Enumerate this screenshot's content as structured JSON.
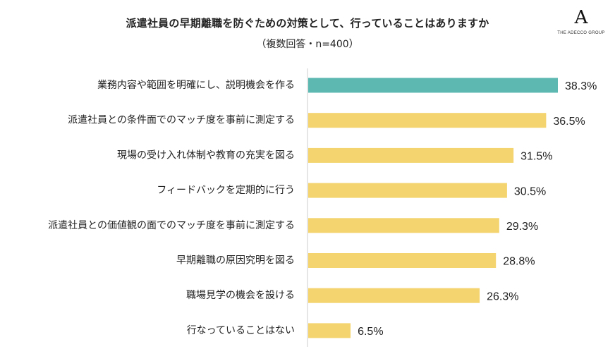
{
  "title": "派遣社員の早期離職を防ぐための対策として、行っていることはありますか",
  "subtitle": "（複数回答・n=400）",
  "logo": {
    "mark": "A",
    "text": "THE ADECCO GROUP"
  },
  "colors": {
    "highlight": "#5db8b2",
    "bar": "#f3d46e",
    "axis": "#cccccc",
    "text": "#222222"
  },
  "chart_data": {
    "type": "bar",
    "orientation": "horizontal",
    "categories": [
      "業務内容や範囲を明確にし、説明機会を作る",
      "派遣社員との条件面でのマッチ度を事前に測定する",
      "現場の受け入れ体制や教育の充実を図る",
      "フィードバックを定期的に行う",
      "派遣社員との価値観の面でのマッチ度を事前に測定する",
      "早期離職の原因究明を図る",
      "職場見学の機会を設ける",
      "行なっていることはない"
    ],
    "values": [
      38.3,
      36.5,
      31.5,
      30.5,
      29.3,
      28.8,
      26.3,
      6.5
    ],
    "value_labels": [
      "38.3%",
      "36.5%",
      "31.5%",
      "30.5%",
      "29.3%",
      "28.8%",
      "26.3%",
      "6.5%"
    ],
    "highlight_index": 0,
    "xlim": [
      0,
      40
    ],
    "grid": false,
    "legend": "none"
  }
}
